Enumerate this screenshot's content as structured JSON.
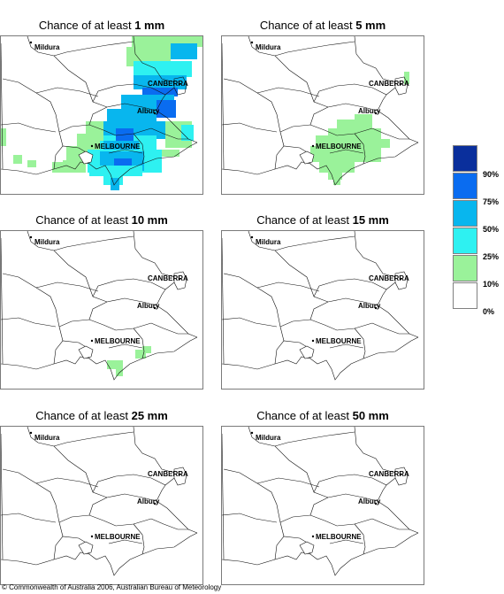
{
  "panels": [
    {
      "title_prefix": "Chance of at least ",
      "title_value": "1 mm"
    },
    {
      "title_prefix": "Chance of at least ",
      "title_value": "5 mm"
    },
    {
      "title_prefix": "Chance of at least ",
      "title_value": "10 mm"
    },
    {
      "title_prefix": "Chance of at least ",
      "title_value": "15 mm"
    },
    {
      "title_prefix": "Chance of at least ",
      "title_value": "25 mm"
    },
    {
      "title_prefix": "Chance of at least ",
      "title_value": "50 mm"
    }
  ],
  "places": {
    "mildura": "Mildura",
    "canberra": "CANBERRA",
    "albury": "Albury",
    "melbourne": "MELBOURNE"
  },
  "legend": {
    "labels": [
      "90%",
      "75%",
      "50%",
      "25%",
      "10%",
      "0%"
    ],
    "colors": [
      "#0a2f9c",
      "#0a6cf0",
      "#08b6ee",
      "#2ef1f1",
      "#9af29a",
      "#ffffff"
    ]
  },
  "copyright": "© Commonwealth of Australia 2006, Australian Bureau of Meteorology"
}
